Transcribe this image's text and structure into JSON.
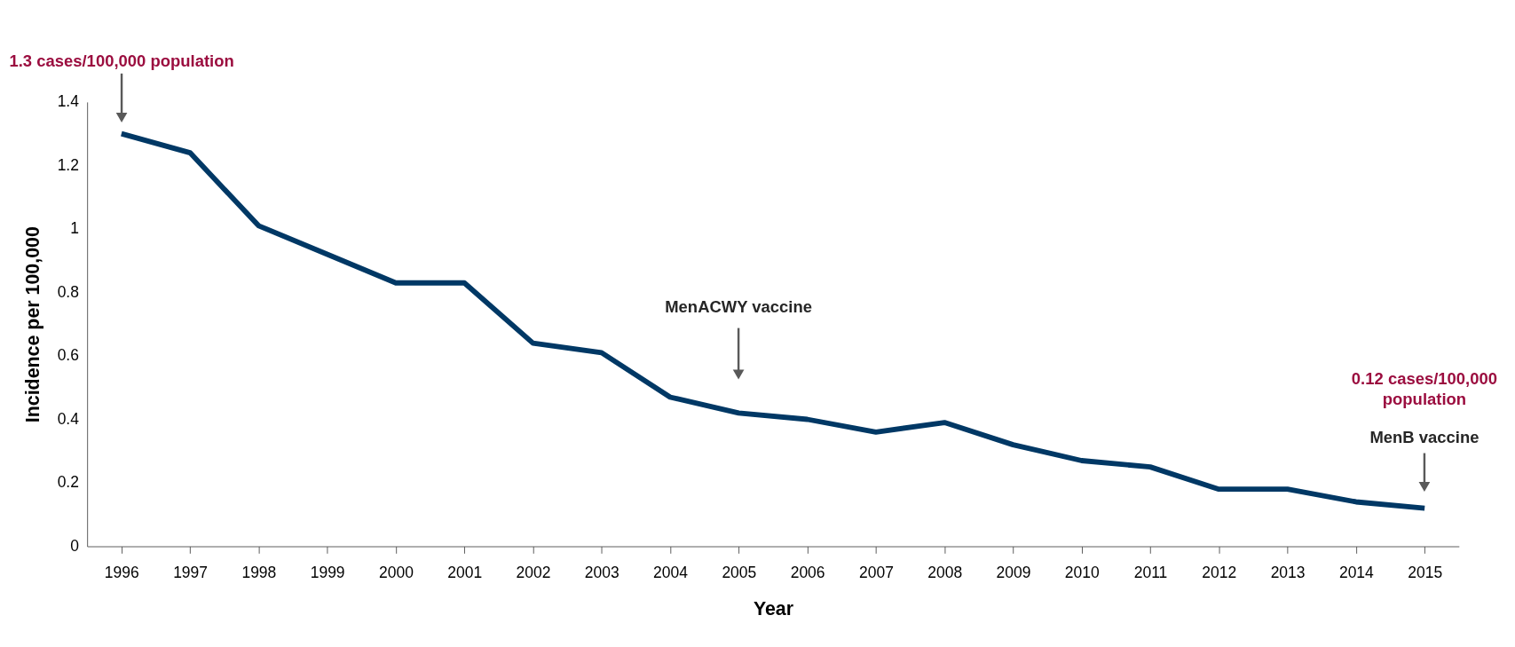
{
  "chart_data": {
    "type": "line",
    "xlabel": "Year",
    "ylabel": "Incidence per 100,000",
    "categories": [
      "1996",
      "1997",
      "1998",
      "1999",
      "2000",
      "2001",
      "2002",
      "2003",
      "2004",
      "2005",
      "2006",
      "2007",
      "2008",
      "2009",
      "2010",
      "2011",
      "2012",
      "2013",
      "2014",
      "2015"
    ],
    "series": [
      {
        "color": "#003865",
        "values": [
          1.3,
          1.24,
          1.01,
          0.92,
          0.83,
          0.83,
          0.64,
          0.61,
          0.47,
          0.42,
          0.4,
          0.36,
          0.39,
          0.32,
          0.27,
          0.25,
          0.18,
          0.18,
          0.14,
          0.12
        ]
      }
    ],
    "ylim": [
      0,
      1.4
    ],
    "yticks": [
      0,
      0.2,
      0.4,
      0.6,
      0.8,
      1,
      1.2,
      1.4
    ],
    "grid": false,
    "marker": "none",
    "line_style": "solid",
    "annotations": [
      "1.3 cases/100,000 population",
      "MenACWY vaccine",
      "0.12 cases/100,000 population",
      "MenB vaccine"
    ]
  }
}
